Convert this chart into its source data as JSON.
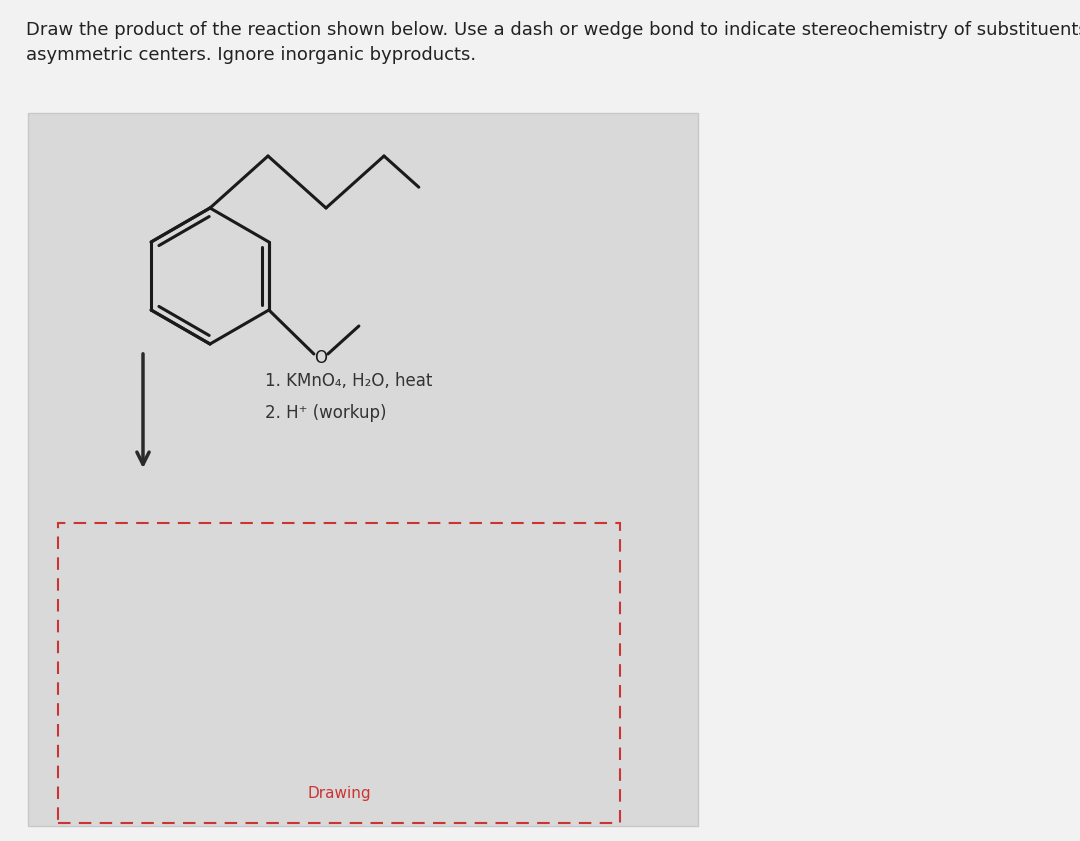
{
  "instruction_text": "Draw the product of the reaction shown below. Use a dash or wedge bond to indicate stereochemistry of substituents on\nasymmetric centers. Ignore inorganic byproducts.",
  "reagent_line1": "1. KMnO₄, H₂O, heat",
  "reagent_line2": "2. H⁺ (workup)",
  "drawing_label": "Drawing",
  "page_bg": "#f2f2f2",
  "inner_box_bg": "#d9d9d9",
  "inner_box_edge": "#c8c8c8",
  "bond_color": "#1a1a1a",
  "bond_lw": 2.2,
  "arrow_color": "#2a2a2a",
  "text_color": "#222222",
  "drawing_box_color": "#cc3333",
  "reagent_text_color": "#333333"
}
